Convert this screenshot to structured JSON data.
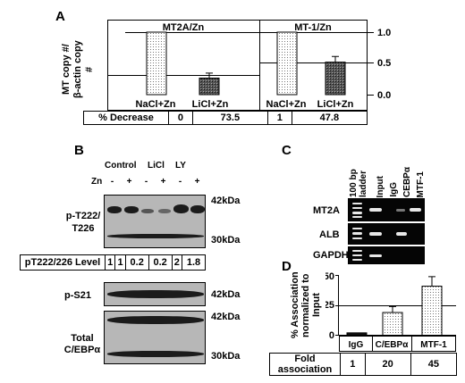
{
  "panelA": {
    "letter": "A",
    "ylabel_line1": "MT copy #/",
    "ylabel_line2": "β-actin copy #",
    "yticks": [
      "1.0",
      "0.5",
      "0.0"
    ],
    "chart_titles": [
      "MT2A/Zn",
      "MT-1/Zn"
    ],
    "row_label": "% Decrease",
    "chart_data": {
      "type": "bar",
      "categories": [
        "NaCl+Zn",
        "LiCl+Zn",
        "NaCl+Zn",
        "LiCl+Zn"
      ],
      "values": [
        1,
        0.265,
        1,
        0.52
      ],
      "reference_lines": [
        1,
        0.6
      ],
      "ylim": [
        0,
        1.0
      ],
      "decrease": [
        "0",
        "73.5",
        "1",
        "47.8"
      ]
    }
  },
  "panelB": {
    "letter": "B",
    "groups": [
      "Control",
      "LiCl",
      "LY"
    ],
    "zn_label": "Zn",
    "zn_signs": [
      "-",
      "+",
      "-",
      "+",
      "-",
      "+"
    ],
    "blot1_label_1": "p-T222/",
    "blot1_label_2": "T226",
    "mw_42": "42kDa",
    "mw_30": "30kDa",
    "level_label": "pT222/226 Level",
    "levels": [
      "1",
      "1",
      "0.2",
      "0.2",
      "2",
      "1.8"
    ],
    "blot2_label": "p-S21",
    "blot3_label_1": "Total",
    "blot3_label_2": "C/EBPα"
  },
  "panelC": {
    "letter": "C",
    "lanes": [
      "100 bp ladder",
      "Input",
      "IgG",
      "CEBPα",
      "MTF-1"
    ],
    "rows": [
      "MT2A",
      "ALB",
      "GAPDH"
    ]
  },
  "panelD": {
    "letter": "D",
    "ylabel_line1": "% Association",
    "ylabel_line2": "normalized to",
    "ylabel_line3": "Input",
    "yticks": [
      "50",
      "25",
      "0"
    ],
    "row_label": "Fold association",
    "chart_data": {
      "type": "bar",
      "categories": [
        "IgG",
        "C/EBPα",
        "MTF-1"
      ],
      "values": [
        2,
        19,
        41
      ],
      "errors": [
        0,
        5,
        8
      ],
      "reference_lines": [
        25
      ],
      "ylim": [
        0,
        50
      ],
      "fold": [
        "1",
        "20",
        "45"
      ]
    }
  }
}
